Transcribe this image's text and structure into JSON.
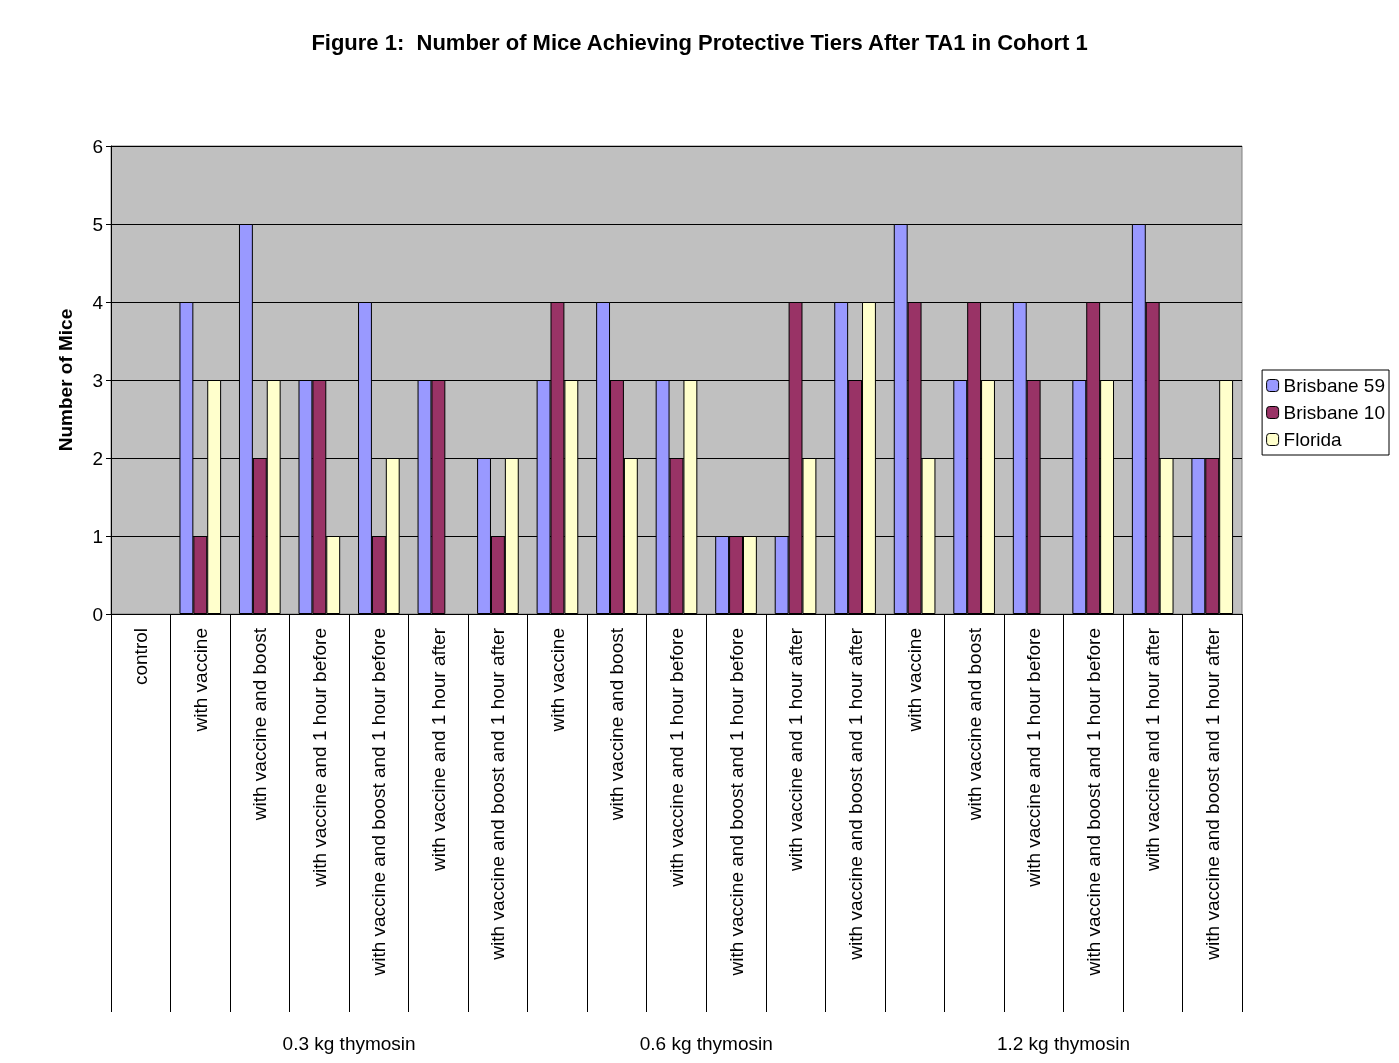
{
  "chart_data": {
    "type": "bar",
    "title": "Figure 1:  Number of Mice Achieving Protective Tiers After TA1 in Cohort 1",
    "ylabel": "Number of Mice",
    "categories": [
      "control",
      "with vaccine",
      "with vaccine and boost",
      "with vaccine and 1 hour before",
      "with vaccine and boost and 1 hour before",
      "with vaccine and 1 hour after",
      "with vaccine and boost and 1 hour after",
      "with vaccine",
      "with vaccine and boost",
      "with vaccine and 1 hour before",
      "with vaccine and boost and 1 hour before",
      "with vaccine and 1 hour after",
      "with vaccine and boost and 1 hour after",
      "with vaccine",
      "with vaccine and boost",
      "with vaccine and 1 hour before",
      "with vaccine and boost and 1 hour before",
      "with vaccine and 1 hour after",
      "with vaccine and boost and 1 hour after"
    ],
    "series": [
      {
        "name": "Brisbane 59",
        "color": "#9999ff",
        "values": [
          null,
          4,
          5,
          3,
          4,
          3,
          2,
          3,
          4,
          3,
          1,
          1,
          4,
          5,
          3,
          4,
          3,
          5,
          2
        ]
      },
      {
        "name": "Brisbane 10",
        "color": "#993366",
        "values": [
          null,
          1,
          2,
          3,
          1,
          3,
          1,
          4,
          3,
          2,
          1,
          4,
          3,
          4,
          4,
          3,
          4,
          4,
          2
        ]
      },
      {
        "name": "Florida",
        "color": "#ffffcc",
        "values": [
          null,
          3,
          3,
          1,
          2,
          null,
          2,
          3,
          2,
          3,
          1,
          2,
          4,
          2,
          3,
          null,
          3,
          2,
          3
        ]
      }
    ],
    "ylim": [
      0,
      6
    ],
    "yticks": [
      0,
      1,
      2,
      3,
      4,
      5,
      6
    ],
    "grid": "y",
    "legend": "right",
    "annotations": [
      "0.3 kg thymosin",
      "0.6 kg thymosin",
      "1.2 kg thymosin"
    ]
  }
}
